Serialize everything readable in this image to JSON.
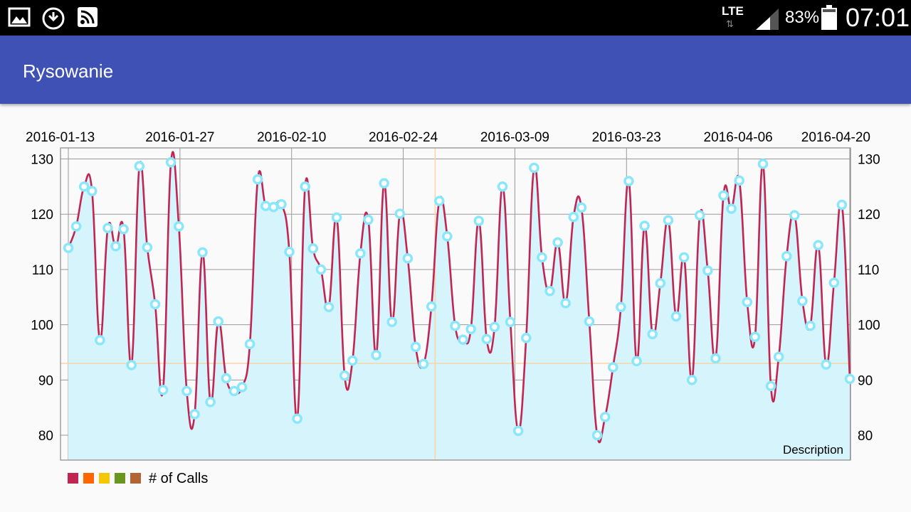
{
  "status_bar": {
    "network": "LTE",
    "battery": "83%",
    "time": "07:01",
    "icons": [
      "gallery-icon",
      "download-icon",
      "cast-icon",
      "signal-icon",
      "battery-icon"
    ]
  },
  "app_bar": {
    "title": "Rysowanie",
    "color": "#3f51b5"
  },
  "chart_data": {
    "type": "line",
    "subtype": "cubic-line-filled",
    "description": "Description",
    "x_tick_labels": [
      "2016-01-13",
      "2016-01-27",
      "2016-02-10",
      "2016-02-24",
      "2016-03-09",
      "2016-03-23",
      "2016-04-06",
      "2016-04-20"
    ],
    "x_start": "2016-01-13",
    "x_end": "2016-04-20",
    "y_ticks": [
      80,
      90,
      100,
      110,
      120,
      130
    ],
    "ylim": [
      75.5,
      132
    ],
    "grid": true,
    "highlight": {
      "x": "2016-02-28",
      "y": 93
    },
    "legend_position": "bottom-left",
    "legend_colors": [
      "#c12552",
      "#ff6600",
      "#f5c700",
      "#6a961f",
      "#b36435"
    ],
    "series": [
      {
        "name": "# of Calls",
        "color": "#c12552",
        "fill_color": "#d5f4fb",
        "circle_color": "#8ae7fb",
        "values": [
          113.9,
          117.8,
          125,
          124.2,
          97.2,
          117.5,
          114.2,
          117.3,
          92.7,
          128.7,
          114,
          103.7,
          88.2,
          129.4,
          117.8,
          88,
          83.8,
          113.1,
          86,
          100.6,
          90.3,
          88,
          88.7,
          96.5,
          126.3,
          121.5,
          121.3,
          121.8,
          113.2,
          83,
          125,
          113.8,
          110,
          103.2,
          119.4,
          90.8,
          93.5,
          112.9,
          119,
          94.5,
          125.6,
          100.5,
          120.1,
          112,
          96,
          92.9,
          103.3,
          122.4,
          116,
          99.8,
          97.3,
          99.2,
          118.8,
          97.4,
          99.6,
          125,
          100.5,
          80.8,
          97.6,
          128.4,
          112.2,
          106.1,
          114.9,
          103.9,
          119.5,
          121.2,
          100.6,
          80,
          83.3,
          92.3,
          103.2,
          126,
          93.4,
          117.9,
          98.3,
          107.5,
          118.9,
          101.5,
          112.2,
          90,
          119.8,
          109.8,
          93.9,
          123.4,
          121,
          126.1,
          104.1,
          97.8,
          129.1,
          88.9,
          94.2,
          112.4,
          119.8,
          104.3,
          99.8,
          114.4,
          92.8,
          107.6,
          121.7,
          90.2
        ]
      }
    ]
  }
}
